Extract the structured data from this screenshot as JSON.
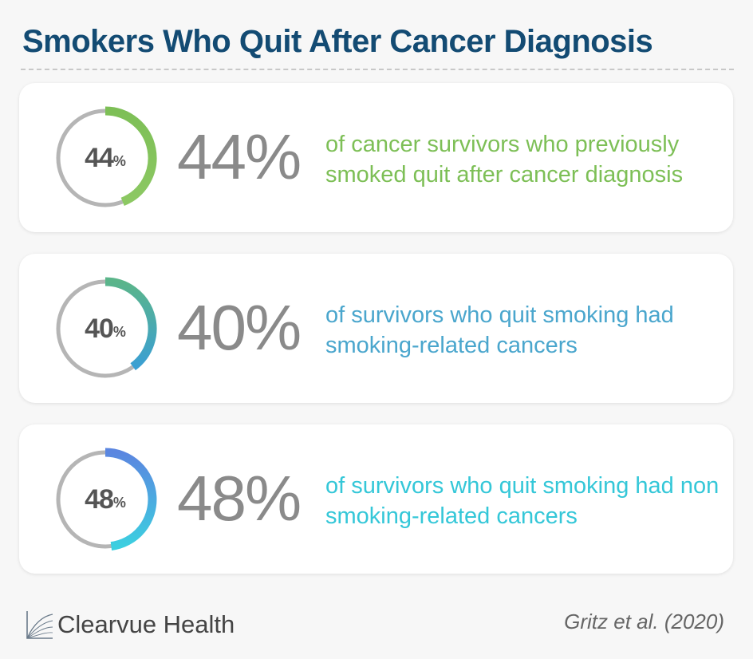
{
  "title": "Smokers Who Quit After Cancer Diagnosis",
  "stats": [
    {
      "value": 44,
      "ring_num": "44",
      "ring_unit": "%",
      "big_text": "44%",
      "description": "of cancer survivors who previously smoked quit after cancer diagnosis",
      "color": "#7dbf56",
      "gradient_start": "#7dbf56",
      "gradient_end": "#8cc863"
    },
    {
      "value": 40,
      "ring_num": "40",
      "ring_unit": "%",
      "big_text": "40%",
      "description": "of survivors who quit smoking had smoking-related cancers",
      "color": "#4aa6cd",
      "gradient_start": "#5bb58a",
      "gradient_end": "#3a9fd3"
    },
    {
      "value": 48,
      "ring_num": "48",
      "ring_unit": "%",
      "big_text": "48%",
      "description": "of survivors who quit smoking had non smoking-related cancers",
      "color": "#34c7d8",
      "gradient_start": "#5b86e0",
      "gradient_end": "#3ccfe0"
    }
  ],
  "chart_data": {
    "type": "pie",
    "categories": [
      "of cancer survivors who previously smoked quit after cancer diagnosis",
      "of survivors who quit smoking had smoking-related cancers",
      "of survivors who quit smoking had non smoking-related cancers"
    ],
    "values": [
      44,
      40,
      48
    ],
    "unit": "%",
    "title": "Smokers Who Quit After Cancer Diagnosis"
  },
  "ring_track_color": "#b5b5b5",
  "brand": {
    "name": "Clearvue Health"
  },
  "citation": "Gritz et al. (2020)"
}
